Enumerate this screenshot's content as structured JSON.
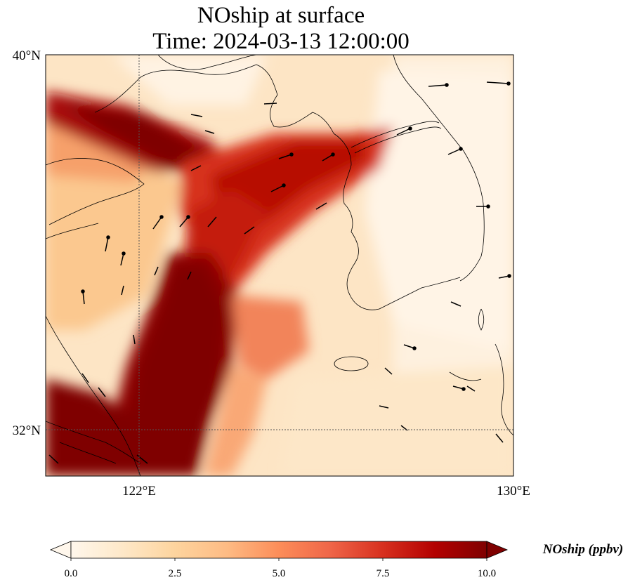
{
  "title": {
    "line1": "NOship at surface",
    "line2": "Time: 2024-03-13 12:00:00"
  },
  "map": {
    "lat_labels": [
      "40°N",
      "32°N"
    ],
    "lon_labels": [
      "122°E",
      "130°E"
    ],
    "extent": {
      "lon": [
        120,
        130
      ],
      "lat": [
        31,
        40
      ]
    },
    "gridlines": {
      "lon": 122,
      "lat": 32
    }
  },
  "colorbar": {
    "title": "NOship (ppbv)",
    "ticks": [
      "0.0",
      "2.5",
      "5.0",
      "7.5",
      "10.0"
    ],
    "range": [
      0,
      10
    ],
    "colormap": "OrRd",
    "extend": "both"
  },
  "colors": {
    "low": "#fff7ec",
    "mid": "#fdbb84",
    "high": "#7f0000"
  }
}
